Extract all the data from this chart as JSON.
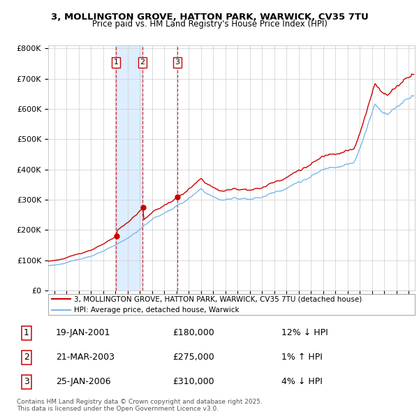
{
  "title1": "3, MOLLINGTON GROVE, HATTON PARK, WARWICK, CV35 7TU",
  "title2": "Price paid vs. HM Land Registry's House Price Index (HPI)",
  "legend_line1": "3, MOLLINGTON GROVE, HATTON PARK, WARWICK, CV35 7TU (detached house)",
  "legend_line2": "HPI: Average price, detached house, Warwick",
  "sale_color": "#cc0000",
  "hpi_color": "#7ab8e8",
  "shade_color": "#ddeeff",
  "transactions": [
    {
      "num": 1,
      "date": "19-JAN-2001",
      "price": 180000,
      "pct": "12%",
      "dir": "↓",
      "year_x": 2001.05
    },
    {
      "num": 2,
      "date": "21-MAR-2003",
      "price": 275000,
      "pct": "1%",
      "dir": "↑",
      "year_x": 2003.22
    },
    {
      "num": 3,
      "date": "25-JAN-2006",
      "price": 310000,
      "pct": "4%",
      "dir": "↓",
      "year_x": 2006.07
    }
  ],
  "footnote": "Contains HM Land Registry data © Crown copyright and database right 2025.\nThis data is licensed under the Open Government Licence v3.0.",
  "ylim": [
    0,
    810000
  ],
  "yticks": [
    0,
    100000,
    200000,
    300000,
    400000,
    500000,
    600000,
    700000,
    800000
  ],
  "ytick_labels": [
    "£0",
    "£100K",
    "£200K",
    "£300K",
    "£400K",
    "£500K",
    "£600K",
    "£700K",
    "£800K"
  ],
  "xlim_start": 1995.5,
  "xlim_end": 2025.5
}
